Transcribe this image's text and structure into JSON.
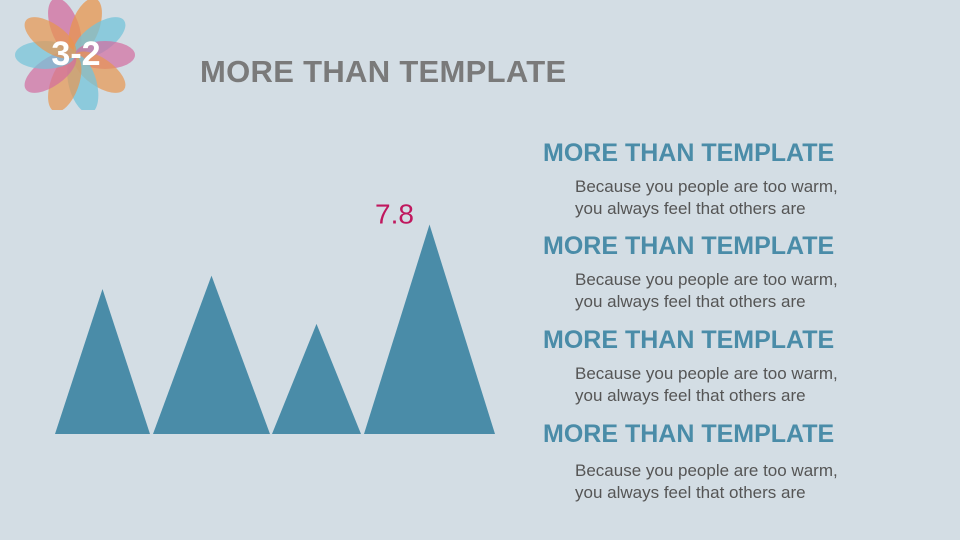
{
  "header": {
    "section_number": "3-2",
    "title": "MORE THAN TEMPLATE"
  },
  "chart_data": {
    "type": "bar",
    "style": "triangle",
    "categories": [
      "",
      "",
      "",
      ""
    ],
    "values": [
      5.4,
      5.9,
      4.1,
      7.8
    ],
    "data_labels": [
      "",
      "",
      "",
      "7.8"
    ],
    "ylim": [
      0,
      10.8
    ],
    "color": "#4a8ca8",
    "label_color": "#c0185e",
    "grid": false
  },
  "items": [
    {
      "heading": "MORE THAN TEMPLATE",
      "line1": "Because you people are too warm,",
      "line2": "you always feel that others are"
    },
    {
      "heading": "MORE THAN TEMPLATE",
      "line1": "Because you people are too warm,",
      "line2": "you always feel that others are"
    },
    {
      "heading": "MORE THAN TEMPLATE",
      "line1": "Because you people are too warm,",
      "line2": "you always feel that others are"
    },
    {
      "heading": "MORE THAN TEMPLATE",
      "line1": "Because you people are too warm,",
      "line2": "you always feel that others are"
    }
  ],
  "colors": {
    "background": "#d3dde4",
    "title": "#7a7a7a",
    "accent": "#4a8ca8",
    "highlight": "#c0185e",
    "body_text": "#555555"
  }
}
